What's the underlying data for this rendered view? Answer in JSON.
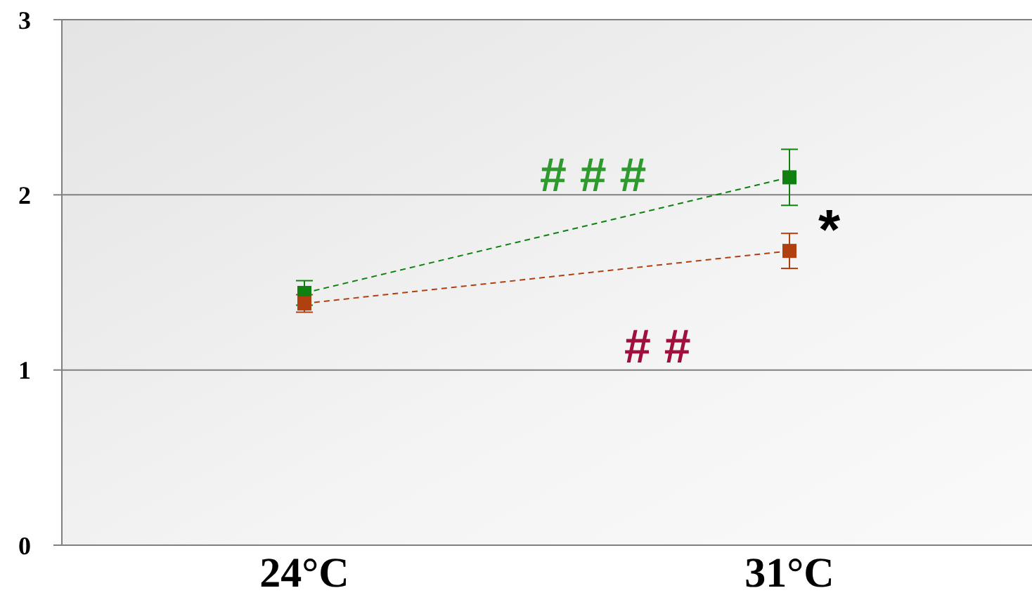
{
  "chart_data": {
    "type": "line",
    "categories": [
      "24°C",
      "31°C"
    ],
    "series": [
      {
        "color": "#108010",
        "values": [
          1.44,
          2.1
        ],
        "errors": [
          0.07,
          0.16
        ]
      },
      {
        "color": "#b04010",
        "values": [
          1.38,
          1.68
        ],
        "errors": [
          0.05,
          0.1
        ]
      }
    ],
    "ylim": [
      0,
      3
    ],
    "yticks": [
      0,
      1,
      2,
      3
    ],
    "grid": "y",
    "marker": "square",
    "line_style": "dashed",
    "annotations": [
      "# # #",
      "*",
      "# #"
    ]
  }
}
